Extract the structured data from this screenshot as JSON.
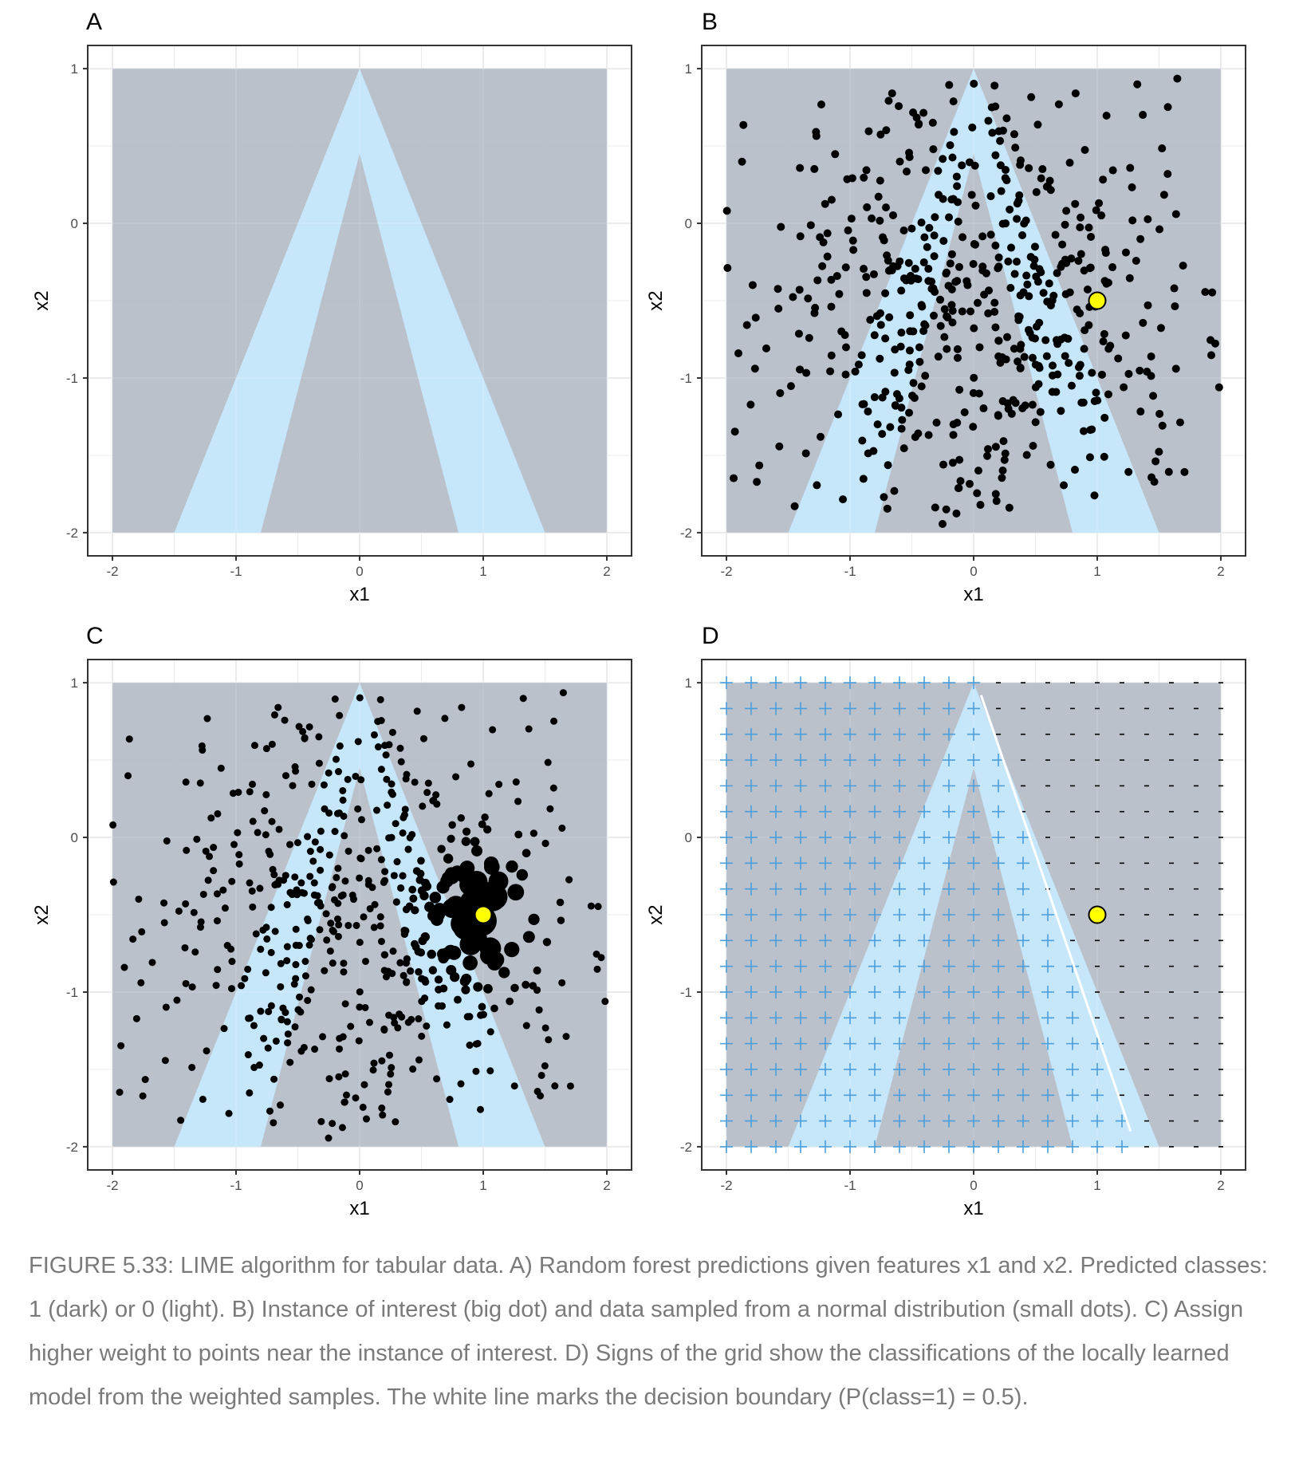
{
  "colors": {
    "dark_region": "#b6bec8",
    "light_region": "#c6e6fa",
    "panel_background": "#ebebeb",
    "grid": "#ebebeb",
    "sample_point": "#000000",
    "instance_point": "#ffff00",
    "plus_sign": "#4a9edc",
    "minus_sign": "#000000",
    "boundary_line": "#ffffff",
    "caption_text": "#7a7a7a"
  },
  "caption": "FIGURE 5.33: LIME algorithm for tabular data. A) Random forest predictions given features x1 and x2. Predicted classes: 1 (dark) or 0 (light). B) Instance of interest (big dot) and data sampled from a normal distribution (small dots). C) Assign higher weight to points near the instance of interest. D) Signs of the grid show the classifications of the locally learned model from the weighted samples. The white line marks the decision boundary (P(class=1) = 0.5).",
  "chart_data": [
    {
      "panel": "A",
      "type": "heatmap",
      "xlabel": "x1",
      "ylabel": "x2",
      "xlim": [
        -2.2,
        2.2
      ],
      "ylim": [
        -2.15,
        1.15
      ],
      "xticks": [
        -2,
        -1,
        0,
        1,
        2
      ],
      "yticks": [
        -2,
        -1,
        0,
        1
      ],
      "grid": true,
      "classes": [
        {
          "label": "1 (dark)",
          "color": "#b6bec8"
        },
        {
          "label": "0 (light)",
          "color": "#c6e6fa"
        }
      ],
      "region_domain": {
        "x": [
          -2,
          2
        ],
        "y": [
          -2,
          1
        ]
      },
      "light_region_polygon": [
        [
          -1.5,
          -2
        ],
        [
          0,
          1
        ],
        [
          1.5,
          -2
        ],
        [
          0.8,
          -2
        ],
        [
          0,
          0.45
        ],
        [
          -0.8,
          -2
        ]
      ]
    },
    {
      "panel": "B",
      "type": "scatter",
      "xlabel": "x1",
      "ylabel": "x2",
      "xlim": [
        -2.2,
        2.2
      ],
      "ylim": [
        -2.15,
        1.15
      ],
      "xticks": [
        -2,
        -1,
        0,
        1,
        2
      ],
      "yticks": [
        -2,
        -1,
        0,
        1
      ],
      "grid": true,
      "sample_distribution": "normal",
      "sample_count": 600,
      "instance_of_interest": {
        "x1": 1.0,
        "x2": -0.5
      }
    },
    {
      "panel": "C",
      "type": "scatter",
      "xlabel": "x1",
      "ylabel": "x2",
      "xlim": [
        -2.2,
        2.2
      ],
      "ylim": [
        -2.15,
        1.15
      ],
      "xticks": [
        -2,
        -1,
        0,
        1,
        2
      ],
      "yticks": [
        -2,
        -1,
        0,
        1
      ],
      "grid": true,
      "point_size_encoding": "weight, higher near the instance of interest",
      "instance_of_interest": {
        "x1": 1.0,
        "x2": -0.5
      }
    },
    {
      "panel": "D",
      "type": "scatter",
      "xlabel": "x1",
      "ylabel": "x2",
      "xlim": [
        -2.2,
        2.2
      ],
      "ylim": [
        -2.15,
        1.15
      ],
      "xticks": [
        -2,
        -1,
        0,
        1,
        2
      ],
      "yticks": [
        -2,
        -1,
        0,
        1
      ],
      "grid": true,
      "sign_grid": {
        "x_from": -2,
        "x_to": 2,
        "y_from": -2,
        "y_to": 1,
        "columns": 20,
        "rows": 18
      },
      "signs": [
        {
          "symbol": "+",
          "class": 0
        },
        {
          "symbol": "-",
          "class": 1
        }
      ],
      "decision_boundary": {
        "label": "P(class=1) = 0.5",
        "x1": [
          0.06,
          1.27
        ],
        "x2": [
          0.92,
          -1.9
        ]
      },
      "instance_of_interest": {
        "x1": 1.0,
        "x2": -0.5
      }
    }
  ]
}
